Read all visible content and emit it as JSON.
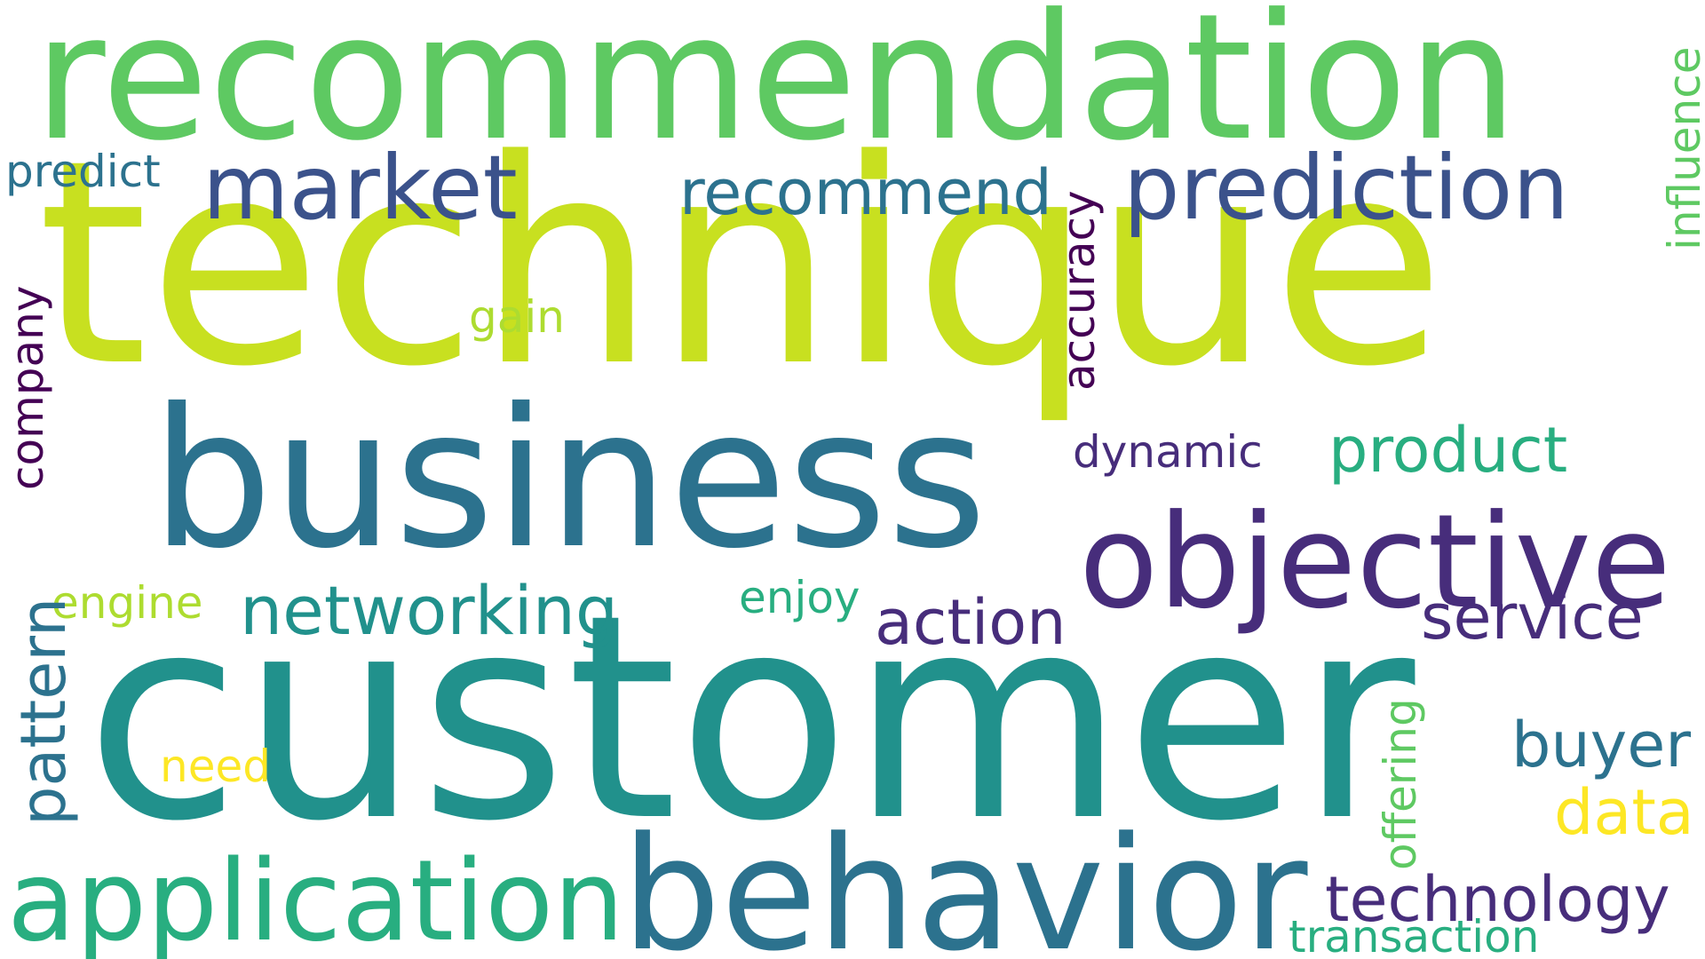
{
  "colors": {
    "background": "#ffffff",
    "dark_purple": "#440154",
    "indigo": "#472d7b",
    "slate_blue": "#3b528b",
    "steel_blue": "#2c728e",
    "teal": "#21918c",
    "sea_green": "#28ae80",
    "green": "#5ec962",
    "lime": "#addc30",
    "yellow": "#fde725",
    "chartreuse": "#c8e020"
  },
  "words": {
    "technique": "technique",
    "customer": "customer",
    "recommendation": "recommendation",
    "business": "business",
    "behavior": "behavior",
    "objective": "objective",
    "application": "application",
    "prediction": "prediction",
    "market": "market",
    "networking": "networking",
    "recommend": "recommend",
    "product": "product",
    "action": "action",
    "pattern": "pattern",
    "technology": "technology",
    "buyer": "buyer",
    "service": "service",
    "data": "data",
    "accuracy": "accuracy",
    "influence": "influence",
    "offering": "offering",
    "company": "company",
    "dynamic": "dynamic",
    "transaction": "transaction",
    "predict": "predict",
    "gain": "gain",
    "engine": "engine",
    "enjoy": "enjoy",
    "need": "need"
  }
}
